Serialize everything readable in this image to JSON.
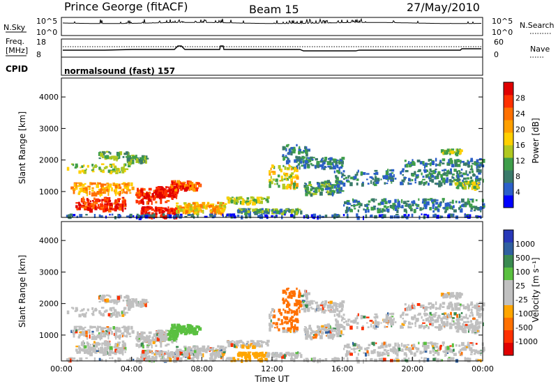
{
  "header": {
    "station": "Prince George (fitACF)",
    "beam": "Beam 15",
    "date": "27/May/2010"
  },
  "strip": {
    "nsky_label": "N.Sky",
    "nsky_ticks": [
      "10^5",
      "10^0"
    ],
    "nsearch_label": "N.Search",
    "nsearch_ticks": [
      "10^5",
      "10^0"
    ],
    "freq_label": "Freq.",
    "freq_unit": "[MHz]",
    "freq_ticks": [
      "18",
      "8"
    ],
    "nave_label": "Nave",
    "nave_ticks": [
      "60",
      "0"
    ],
    "cpid_label": "CPID",
    "cpid_text": "normalsound (fast) 157"
  },
  "chart_data": [
    {
      "type": "heatmap",
      "name": "power",
      "ylabel": "Slant Range [km]",
      "yticks": [
        "1000",
        "2000",
        "3000",
        "4000"
      ],
      "ylim": [
        180,
        4600
      ],
      "xlim": [
        0,
        24
      ],
      "colorbar_label": "Power [dB]",
      "colorbar_ticks": [
        "4",
        "8",
        "12",
        "16",
        "20",
        "24",
        "28"
      ],
      "colorscale": [
        "#0000ff",
        "#2b5fc9",
        "#3a7a6a",
        "#3f9e4a",
        "#b0c820",
        "#ffd000",
        "#ffa000",
        "#ff7000",
        "#ff3000",
        "#e00000"
      ]
    },
    {
      "type": "heatmap",
      "name": "velocity",
      "ylabel": "Slant Range [km]",
      "yticks": [
        "1000",
        "2000",
        "3000",
        "4000"
      ],
      "ylim": [
        180,
        4600
      ],
      "xlim": [
        0,
        24
      ],
      "xlabel": "Time UT",
      "xticks": [
        "00:00",
        "04:00",
        "08:00",
        "12:00",
        "16:00",
        "20:00",
        "00:00"
      ],
      "colorbar_label": "Velocity [m s⁻¹]",
      "colorbar_ticks": [
        "1000",
        "500",
        "100",
        "25",
        "-25",
        "-100",
        "-500",
        "-1000"
      ],
      "colorscale": [
        "#2838b8",
        "#3060a0",
        "#3a8a50",
        "#5ac040",
        "#c0c0c0",
        "#c0c0c0",
        "#ffa500",
        "#ff7000",
        "#ff3000",
        "#e00000"
      ]
    }
  ]
}
